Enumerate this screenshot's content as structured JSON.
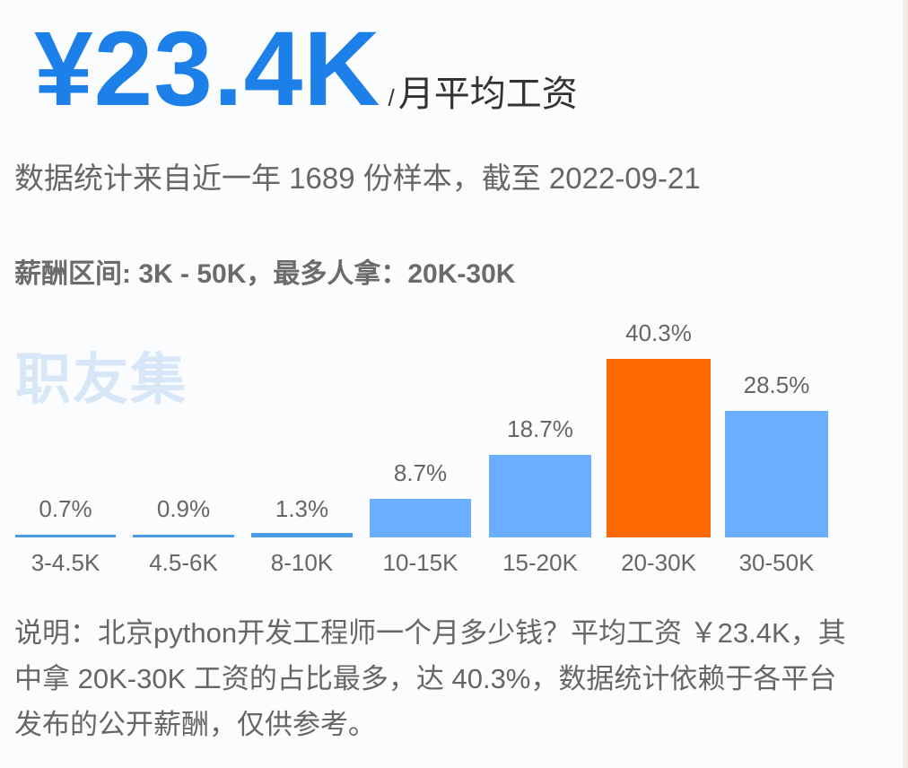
{
  "header": {
    "salary_value": "¥23.4K",
    "per_month_slash": "/",
    "per_month_label": "月平均工资"
  },
  "subtitle": "数据统计来自近一年 1689 份样本，截至 2022-09-21",
  "range_summary": "薪酬区间: 3K - 50K，最多人拿：20K-30K",
  "watermark": "职友集",
  "colors": {
    "accent_blue": "#1d80e9",
    "bar_blue": "#6aafff",
    "bar_highlight": "#ff6a00",
    "thin_bar_blue": "#4a9ae8"
  },
  "chart_data": {
    "type": "bar",
    "title": "",
    "xlabel": "",
    "ylabel": "",
    "categories": [
      "3-4.5K",
      "4.5-6K",
      "8-10K",
      "10-15K",
      "15-20K",
      "20-30K",
      "30-50K"
    ],
    "values": [
      0.7,
      0.9,
      1.3,
      8.7,
      18.7,
      40.3,
      28.5
    ],
    "value_labels": [
      "0.7%",
      "0.9%",
      "1.3%",
      "8.7%",
      "18.7%",
      "40.3%",
      "28.5%"
    ],
    "unit": "%",
    "highlight_index": 5,
    "ylim": [
      0,
      45
    ],
    "grid": false,
    "legend": "none"
  },
  "description": "说明：北京python开发工程师一个月多少钱？平均工资 ￥23.4K，其中拿 20K-30K 工资的占比最多，达 40.3%，数据统计依赖于各平台发布的公开薪酬，仅供参考。"
}
